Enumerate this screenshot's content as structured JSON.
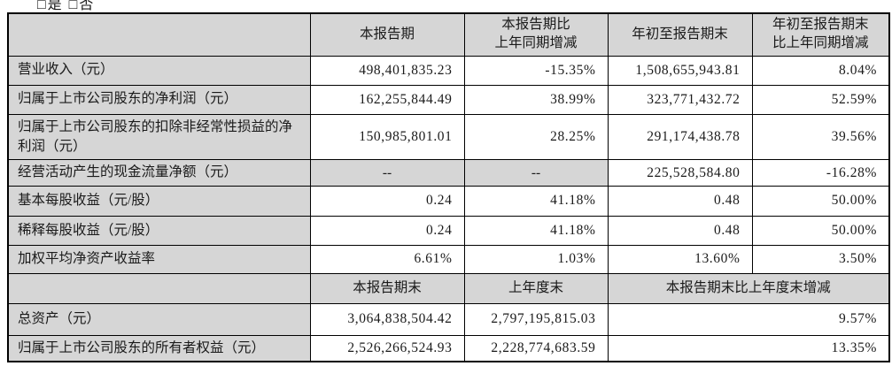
{
  "top_note": "□是 □否",
  "colors": {
    "cell_gray": "#d6d6d6",
    "border": "#000000",
    "text": "#1a1a1a"
  },
  "table": {
    "section1": {
      "headers": [
        "",
        "本报告期",
        "本报告期比\n上年同期增减",
        "年初至报告期末",
        "年初至报告期末\n比上年同期增减"
      ],
      "rows": [
        {
          "label": "营业收入（元）",
          "values": [
            "498,401,835.23",
            "-15.35%",
            "1,508,655,943.81",
            "8.04%"
          ]
        },
        {
          "label": "归属于上市公司股东的净利润（元）",
          "values": [
            "162,255,844.49",
            "38.99%",
            "323,771,432.72",
            "52.59%"
          ]
        },
        {
          "label": "归属于上市公司股东的扣除非经常性损益的净利润（元）",
          "values": [
            "150,985,801.01",
            "28.25%",
            "291,174,438.78",
            "39.56%"
          ]
        },
        {
          "label": "经营活动产生的现金流量净额（元）",
          "values": [
            "--",
            "--",
            "225,528,584.80",
            "-16.28%"
          ]
        },
        {
          "label": "基本每股收益（元/股）",
          "values": [
            "0.24",
            "41.18%",
            "0.48",
            "50.00%"
          ]
        },
        {
          "label": "稀释每股收益（元/股）",
          "values": [
            "0.24",
            "41.18%",
            "0.48",
            "50.00%"
          ]
        },
        {
          "label": "加权平均净资产收益率",
          "values": [
            "6.61%",
            "1.03%",
            "13.60%",
            "3.50%"
          ]
        }
      ]
    },
    "section2": {
      "headers": [
        "",
        "本报告期末",
        "上年度末",
        "本报告期末比上年度末增减"
      ],
      "rows": [
        {
          "label": "总资产（元）",
          "values": [
            "3,064,838,504.42",
            "2,797,195,815.03",
            "9.57%"
          ]
        },
        {
          "label": "归属于上市公司股东的所有者权益（元）",
          "values": [
            "2,526,266,524.93",
            "2,228,774,683.59",
            "13.35%"
          ]
        }
      ]
    }
  }
}
